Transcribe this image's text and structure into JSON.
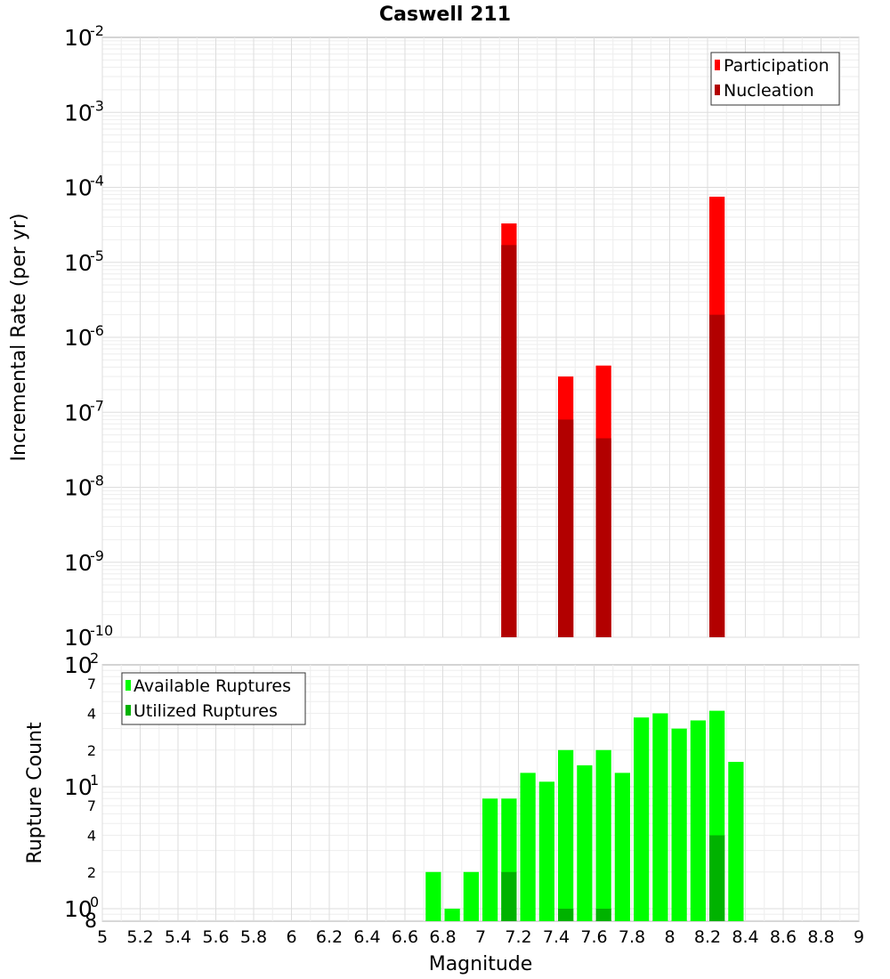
{
  "chart_data": [
    {
      "type": "bar",
      "title": "Caswell 211",
      "ylabel": "Incremental Rate (per yr)",
      "yscale": "log",
      "ylim": [
        1e-10,
        0.01
      ],
      "xlim": [
        5,
        9
      ],
      "y_tick_mantissa": "10",
      "y_tick_exponents": [
        "-10",
        "-9",
        "-8",
        "-7",
        "-6",
        "-5",
        "-4",
        "-3",
        "-2"
      ],
      "legend_position": "top-right",
      "grid": true,
      "series": [
        {
          "name": "Participation",
          "color": "#ff0000",
          "x": [
            7.15,
            7.45,
            7.65,
            8.25
          ],
          "values": [
            3.3e-05,
            3e-07,
            4.2e-07,
            7.5e-05
          ]
        },
        {
          "name": "Nucleation",
          "color": "#b20000",
          "x": [
            7.15,
            7.45,
            7.65,
            8.25
          ],
          "values": [
            1.7e-05,
            8e-08,
            4.5e-08,
            2e-06
          ]
        }
      ]
    },
    {
      "type": "bar",
      "ylabel": "Rupture Count",
      "xlabel": "Magnitude",
      "yscale": "log",
      "xlim": [
        5,
        9
      ],
      "x_ticks": [
        "5",
        "5.2",
        "5.4",
        "5.6",
        "5.8",
        "6",
        "6.2",
        "6.4",
        "6.6",
        "6.8",
        "7",
        "7.2",
        "7.4",
        "7.6",
        "7.8",
        "8",
        "8.2",
        "8.4",
        "8.6",
        "8.8",
        "9"
      ],
      "y_major_ticks": [
        {
          "mantissa": "10",
          "exp": "0",
          "value": 1
        },
        {
          "mantissa": "10",
          "exp": "1",
          "value": 10
        },
        {
          "mantissa": "10",
          "exp": "2",
          "value": 100
        }
      ],
      "y_minor_ticks": [
        "2",
        "4",
        "7",
        "2",
        "4",
        "7"
      ],
      "y_bottom_label": "8",
      "legend_position": "top-left",
      "grid": true,
      "series": [
        {
          "name": "Available Ruptures",
          "color": "#00ff00",
          "x": [
            6.75,
            6.85,
            6.95,
            7.05,
            7.15,
            7.25,
            7.35,
            7.45,
            7.55,
            7.65,
            7.75,
            7.85,
            7.95,
            8.05,
            8.15,
            8.25,
            8.35
          ],
          "values": [
            2,
            1,
            2,
            8,
            8,
            13,
            11,
            20,
            15,
            20,
            13,
            37,
            40,
            30,
            35,
            42,
            16
          ]
        },
        {
          "name": "Utilized Ruptures",
          "color": "#00b200",
          "x": [
            7.15,
            7.45,
            7.65,
            8.25
          ],
          "values": [
            2,
            1,
            1,
            4
          ]
        }
      ]
    }
  ]
}
